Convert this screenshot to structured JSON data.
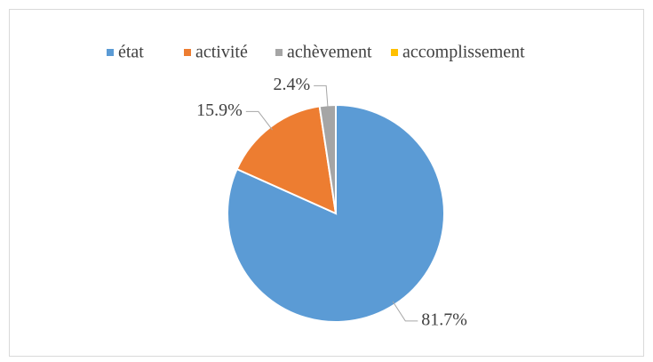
{
  "chart_data": {
    "type": "pie",
    "categories": [
      "état",
      "activité",
      "achèvement",
      "accomplissement"
    ],
    "values": [
      81.7,
      15.9,
      2.4,
      0
    ],
    "value_labels": [
      "81.7%",
      "15.9%",
      "2.4%",
      null
    ],
    "colors": [
      "#5b9bd5",
      "#ed7d31",
      "#a5a5a5",
      "#ffc000"
    ],
    "legend": "top"
  }
}
